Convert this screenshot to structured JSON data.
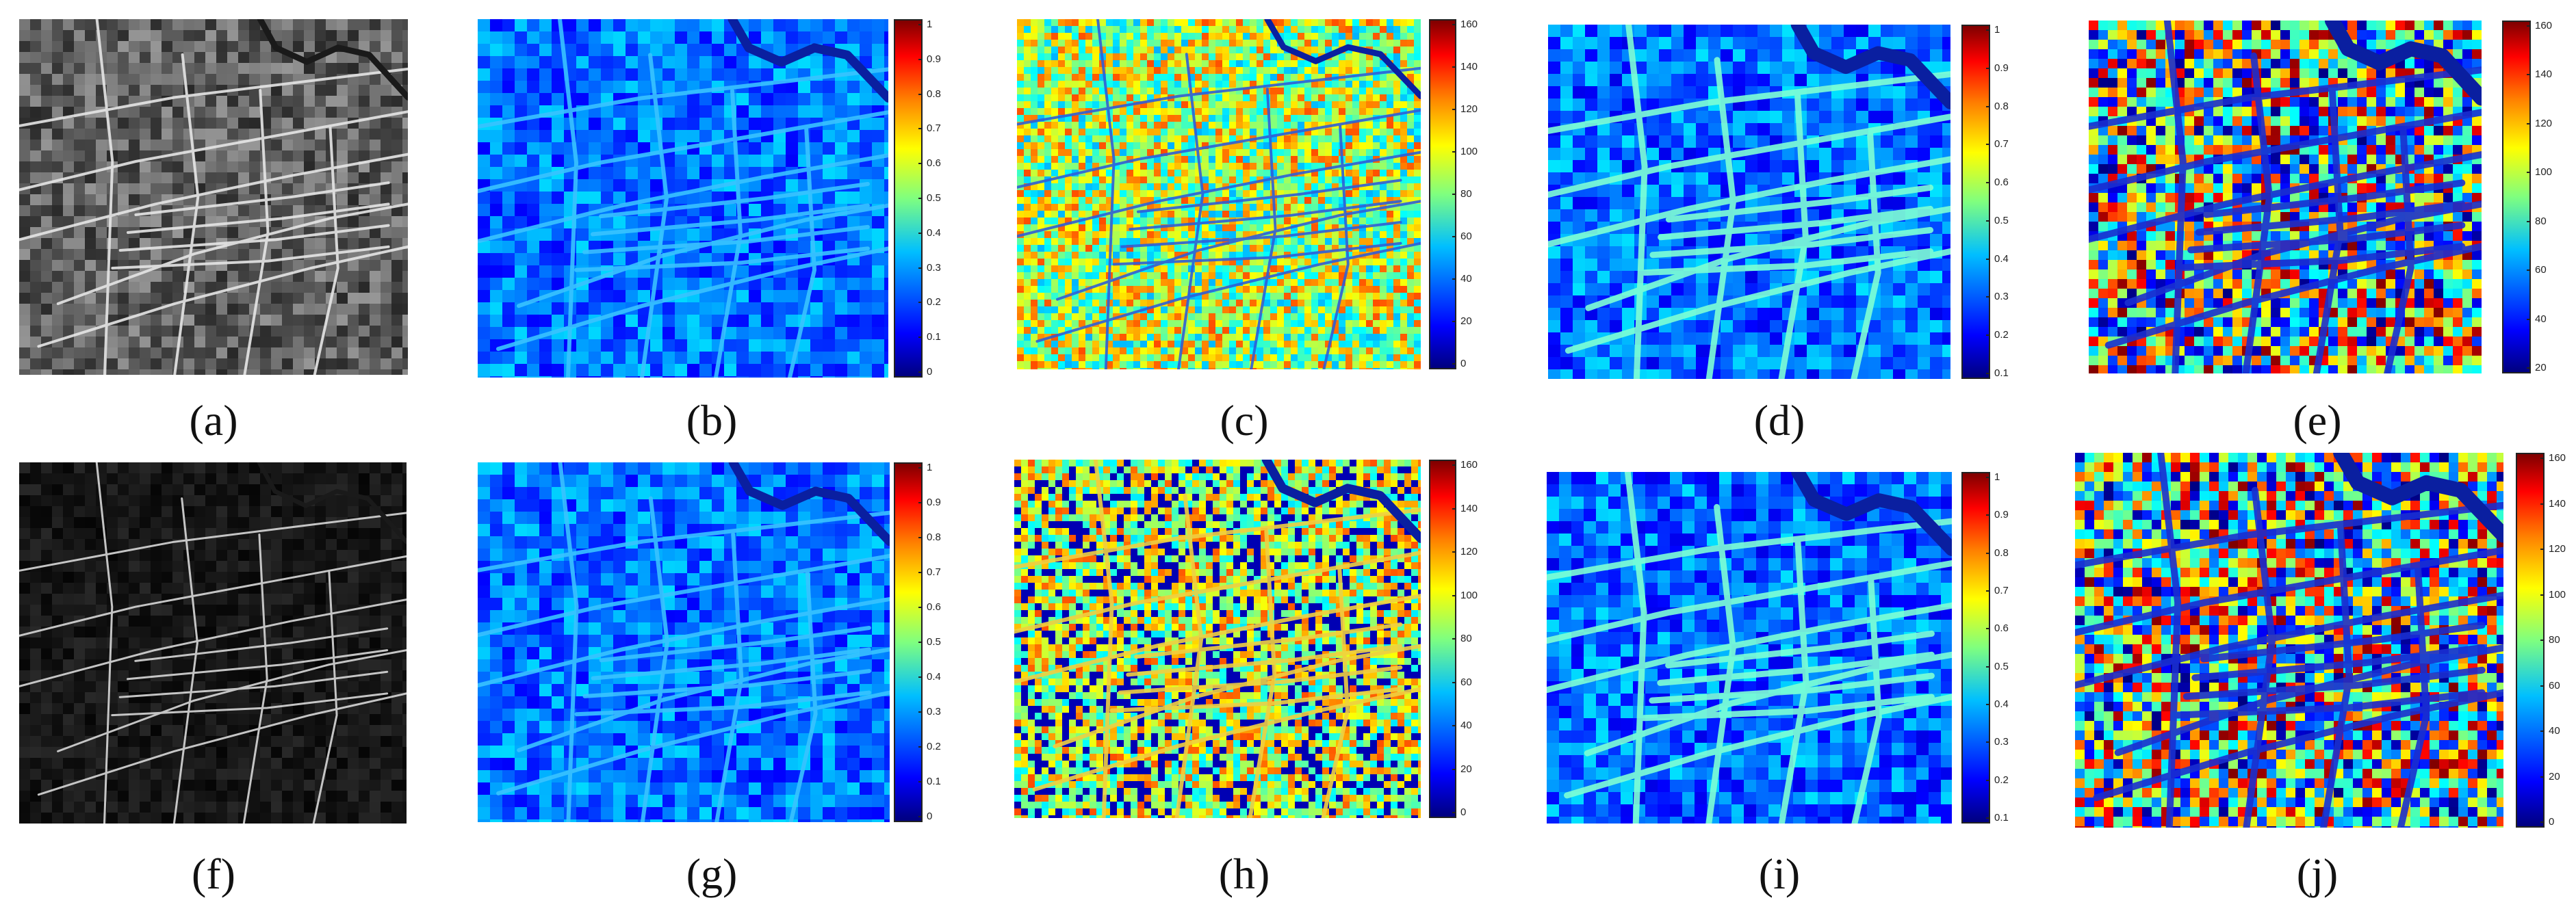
{
  "figure": {
    "panels": [
      {
        "id": "a",
        "caption": "(a)",
        "kind": "sar-gray",
        "colorbar": null
      },
      {
        "id": "b",
        "caption": "(b)",
        "kind": "jet-low",
        "colorbar": {
          "ticks": [
            "1",
            "0.9",
            "0.8",
            "0.7",
            "0.6",
            "0.5",
            "0.4",
            "0.3",
            "0.2",
            "0.1",
            "0"
          ]
        }
      },
      {
        "id": "c",
        "caption": "(c)",
        "kind": "jet-noise",
        "colorbar": {
          "ticks": [
            "160",
            "140",
            "120",
            "100",
            "80",
            "60",
            "40",
            "20",
            "0"
          ]
        }
      },
      {
        "id": "d",
        "caption": "(d)",
        "kind": "jet-edges",
        "colorbar": {
          "ticks": [
            "1",
            "0.9",
            "0.8",
            "0.7",
            "0.6",
            "0.5",
            "0.4",
            "0.3",
            "0.2",
            "0.1"
          ]
        }
      },
      {
        "id": "e",
        "caption": "(e)",
        "kind": "jet-orient",
        "colorbar": {
          "ticks": [
            "160",
            "140",
            "120",
            "100",
            "80",
            "60",
            "40",
            "20"
          ]
        }
      },
      {
        "id": "f",
        "caption": "(f)",
        "kind": "sar-dark",
        "colorbar": null
      },
      {
        "id": "g",
        "caption": "(g)",
        "kind": "jet-low",
        "colorbar": {
          "ticks": [
            "1",
            "0.9",
            "0.8",
            "0.7",
            "0.6",
            "0.5",
            "0.4",
            "0.3",
            "0.2",
            "0.1",
            "0"
          ]
        }
      },
      {
        "id": "h",
        "caption": "(h)",
        "kind": "jet-noise2",
        "colorbar": {
          "ticks": [
            "160",
            "140",
            "120",
            "100",
            "80",
            "60",
            "40",
            "20",
            "0"
          ]
        }
      },
      {
        "id": "i",
        "caption": "(i)",
        "kind": "jet-edges",
        "colorbar": {
          "ticks": [
            "1",
            "0.9",
            "0.8",
            "0.7",
            "0.6",
            "0.5",
            "0.4",
            "0.3",
            "0.2",
            "0.1"
          ]
        }
      },
      {
        "id": "j",
        "caption": "(j)",
        "kind": "jet-orient",
        "colorbar": {
          "ticks": [
            "160",
            "140",
            "120",
            "100",
            "80",
            "60",
            "40",
            "20",
            "0"
          ]
        }
      }
    ]
  }
}
